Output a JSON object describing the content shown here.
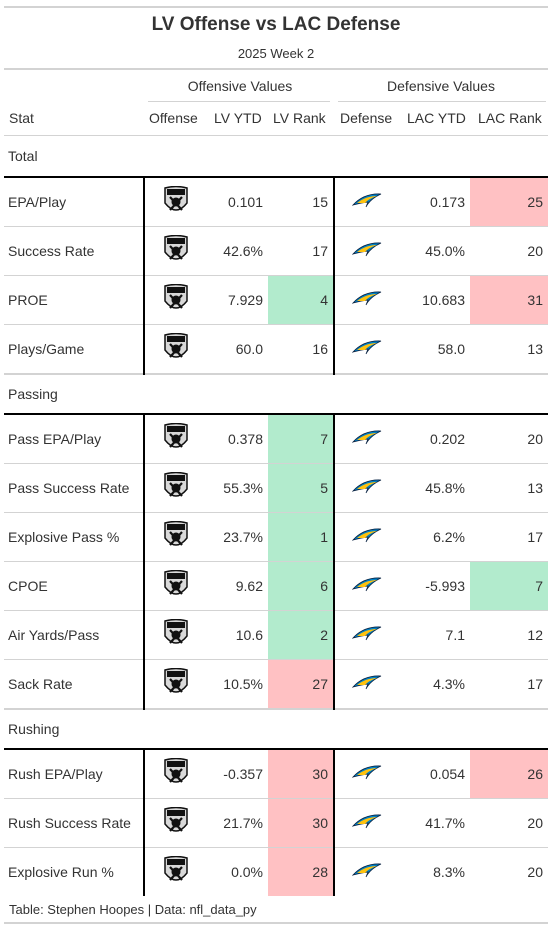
{
  "title": "LV Offense vs LAC Defense",
  "subtitle": "2025 Week 2",
  "spanners": {
    "offense": "Offensive Values",
    "defense": "Defensive Values"
  },
  "columns": [
    "Stat",
    "Offense",
    "LV YTD",
    "LV Rank",
    "Defense",
    "LAC YTD",
    "LAC Rank"
  ],
  "colors": {
    "good": "#b2ebcd",
    "bad": "#ffc1c3"
  },
  "icons": {
    "offense": "raiders-logo-icon",
    "defense": "chargers-logo-icon"
  },
  "groups": [
    {
      "label": "Total",
      "rows": [
        {
          "stat": "EPA/Play",
          "lv_ytd": "0.101",
          "lv_rank": "15",
          "lac_ytd": "0.173",
          "lac_rank": "25",
          "lv_hl": "",
          "lac_hl": "bad"
        },
        {
          "stat": "Success Rate",
          "lv_ytd": "42.6%",
          "lv_rank": "17",
          "lac_ytd": "45.0%",
          "lac_rank": "20",
          "lv_hl": "",
          "lac_hl": ""
        },
        {
          "stat": "PROE",
          "lv_ytd": "7.929",
          "lv_rank": "4",
          "lac_ytd": "10.683",
          "lac_rank": "31",
          "lv_hl": "good",
          "lac_hl": "bad"
        },
        {
          "stat": "Plays/Game",
          "lv_ytd": "60.0",
          "lv_rank": "16",
          "lac_ytd": "58.0",
          "lac_rank": "13",
          "lv_hl": "",
          "lac_hl": ""
        }
      ]
    },
    {
      "label": "Passing",
      "rows": [
        {
          "stat": "Pass EPA/Play",
          "lv_ytd": "0.378",
          "lv_rank": "7",
          "lac_ytd": "0.202",
          "lac_rank": "20",
          "lv_hl": "good",
          "lac_hl": ""
        },
        {
          "stat": "Pass Success Rate",
          "lv_ytd": "55.3%",
          "lv_rank": "5",
          "lac_ytd": "45.8%",
          "lac_rank": "13",
          "lv_hl": "good",
          "lac_hl": ""
        },
        {
          "stat": "Explosive Pass %",
          "lv_ytd": "23.7%",
          "lv_rank": "1",
          "lac_ytd": "6.2%",
          "lac_rank": "17",
          "lv_hl": "good",
          "lac_hl": ""
        },
        {
          "stat": "CPOE",
          "lv_ytd": "9.62",
          "lv_rank": "6",
          "lac_ytd": "-5.993",
          "lac_rank": "7",
          "lv_hl": "good",
          "lac_hl": "good"
        },
        {
          "stat": "Air Yards/Pass",
          "lv_ytd": "10.6",
          "lv_rank": "2",
          "lac_ytd": "7.1",
          "lac_rank": "12",
          "lv_hl": "good",
          "lac_hl": ""
        },
        {
          "stat": "Sack Rate",
          "lv_ytd": "10.5%",
          "lv_rank": "27",
          "lac_ytd": "4.3%",
          "lac_rank": "17",
          "lv_hl": "bad",
          "lac_hl": ""
        }
      ]
    },
    {
      "label": "Rushing",
      "rows": [
        {
          "stat": "Rush EPA/Play",
          "lv_ytd": "-0.357",
          "lv_rank": "30",
          "lac_ytd": "0.054",
          "lac_rank": "26",
          "lv_hl": "bad",
          "lac_hl": "bad"
        },
        {
          "stat": "Rush Success Rate",
          "lv_ytd": "21.7%",
          "lv_rank": "30",
          "lac_ytd": "41.7%",
          "lac_rank": "20",
          "lv_hl": "bad",
          "lac_hl": ""
        },
        {
          "stat": "Explosive Run %",
          "lv_ytd": "0.0%",
          "lv_rank": "28",
          "lac_ytd": "8.3%",
          "lac_rank": "20",
          "lv_hl": "bad",
          "lac_hl": ""
        }
      ]
    }
  ],
  "source_note": "Table: Stephen Hoopes | Data: nfl_data_py"
}
